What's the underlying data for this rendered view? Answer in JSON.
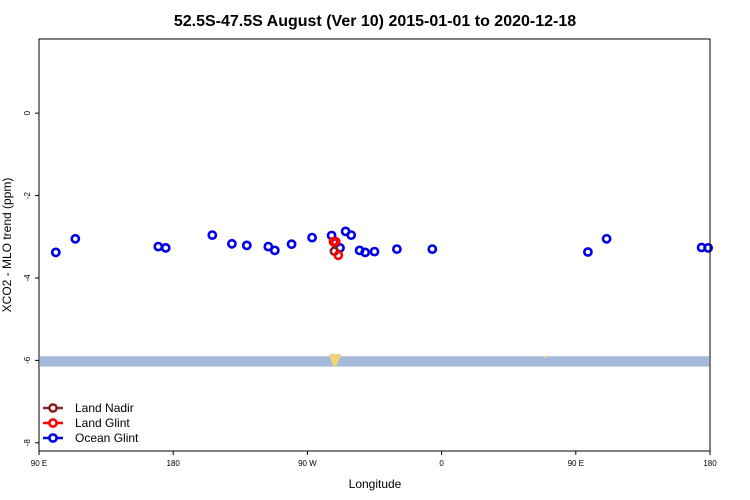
{
  "chart_data": {
    "type": "scatter",
    "title": "52.5S-47.5S August (Ver 10)   2015-01-01 to 2020-12-18",
    "xlabel": "Longitude",
    "ylabel": "XCO2 - MLO trend (ppm)",
    "xlim": [
      90,
      450
    ],
    "ylim": [
      -8.2,
      1.8
    ],
    "x_ticks": [
      {
        "value": 90,
        "label": "90 E"
      },
      {
        "value": 162,
        "label": "180"
      },
      {
        "value": 234,
        "label": "90 W"
      },
      {
        "value": 306,
        "label": "0"
      },
      {
        "value": 378,
        "label": "90 E"
      },
      {
        "value": 450,
        "label": "180"
      }
    ],
    "y_ticks": [
      {
        "value": 0,
        "label": "0"
      },
      {
        "value": -2,
        "label": "-2"
      },
      {
        "value": -4,
        "label": "-4"
      },
      {
        "value": -6,
        "label": "-6"
      },
      {
        "value": -8,
        "label": "-8"
      }
    ],
    "colors": {
      "land_nadir": "#8b2323",
      "land_glint": "#ff0000",
      "ocean_glint": "#0000e6",
      "ocean_band": "#a4b9db",
      "land_patch": "#f2d27a"
    },
    "series": [
      {
        "name": "Land Nadir",
        "color": "#8b2323",
        "points": [
          [
            248.5,
            -3.35
          ]
        ]
      },
      {
        "name": "Land Glint",
        "color": "#ff0000",
        "points": [
          [
            248.0,
            -3.12
          ],
          [
            249.2,
            -3.12
          ],
          [
            250.6,
            -3.45
          ]
        ]
      },
      {
        "name": "Ocean Glint",
        "color": "#0000e6",
        "points": [
          [
            99.0,
            -3.38
          ],
          [
            109.5,
            -3.05
          ],
          [
            154.0,
            -3.24
          ],
          [
            158.0,
            -3.27
          ],
          [
            183.0,
            -2.96
          ],
          [
            193.5,
            -3.17
          ],
          [
            201.5,
            -3.21
          ],
          [
            213.0,
            -3.24
          ],
          [
            216.5,
            -3.33
          ],
          [
            225.5,
            -3.18
          ],
          [
            236.5,
            -3.02
          ],
          [
            247.0,
            -2.97
          ],
          [
            249.0,
            -3.15
          ],
          [
            251.5,
            -3.27
          ],
          [
            254.5,
            -2.87
          ],
          [
            257.5,
            -2.96
          ],
          [
            262.0,
            -3.33
          ],
          [
            265.0,
            -3.38
          ],
          [
            270.0,
            -3.36
          ],
          [
            282.0,
            -3.3
          ],
          [
            301.0,
            -3.3
          ],
          [
            384.5,
            -3.37
          ],
          [
            394.5,
            -3.05
          ],
          [
            445.5,
            -3.26
          ],
          [
            449.0,
            -3.27
          ]
        ]
      }
    ],
    "legend": {
      "position": "bottom-left",
      "entries": [
        "Land Nadir",
        "Land Glint",
        "Ocean Glint"
      ]
    },
    "background_band": {
      "ymin": -6.15,
      "ymax": -5.9
    },
    "grid": false
  }
}
